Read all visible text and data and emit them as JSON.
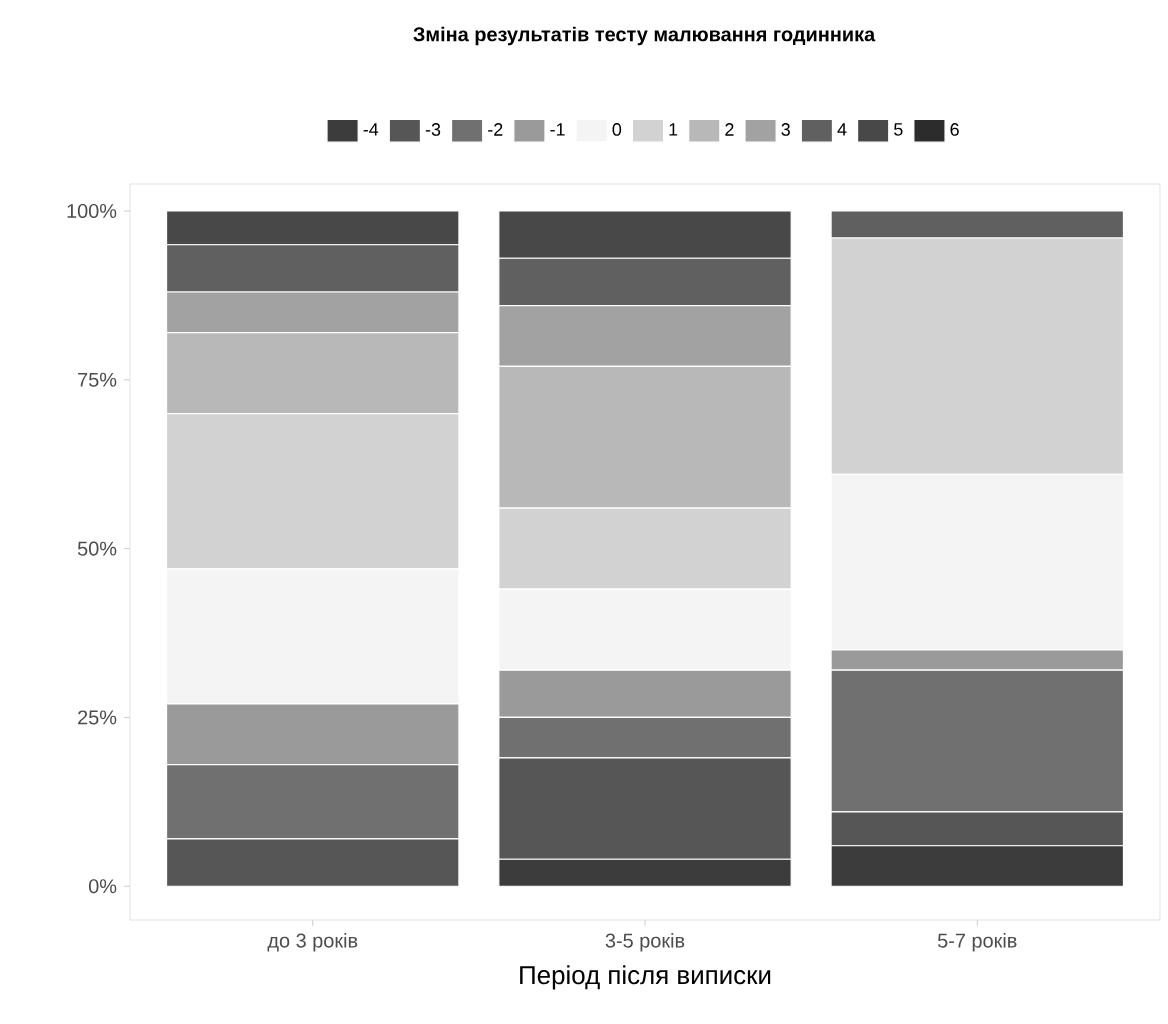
{
  "chart_data": {
    "type": "bar",
    "stacked": true,
    "xlabel": "Період після виписки",
    "legend_title": "Зміна результатів тесту малювання годинника",
    "legend": "top",
    "categories": [
      "до 3 років",
      "3-5 років",
      "5-7 років"
    ],
    "ylim": [
      -5,
      104
    ],
    "yticks": [
      {
        "value": 0,
        "label": "0%"
      },
      {
        "value": 25,
        "label": "25%"
      },
      {
        "value": 50,
        "label": "50%"
      },
      {
        "value": 75,
        "label": "75%"
      },
      {
        "value": 100,
        "label": "100%"
      }
    ],
    "series": [
      {
        "name": "-4",
        "color": "#3c3c3c",
        "values": [
          0,
          4,
          6
        ]
      },
      {
        "name": "-3",
        "color": "#565656",
        "values": [
          7,
          15,
          5
        ]
      },
      {
        "name": "-2",
        "color": "#707070",
        "values": [
          11,
          6,
          21
        ]
      },
      {
        "name": "-1",
        "color": "#9a9a9a",
        "values": [
          9,
          7,
          3
        ]
      },
      {
        "name": "0",
        "color": "#f4f4f4",
        "values": [
          20,
          12,
          26
        ]
      },
      {
        "name": "1",
        "color": "#d2d2d2",
        "values": [
          23,
          12,
          35
        ]
      },
      {
        "name": "2",
        "color": "#b8b8b8",
        "values": [
          12,
          21,
          0
        ]
      },
      {
        "name": "3",
        "color": "#a2a2a2",
        "values": [
          6,
          9,
          0
        ]
      },
      {
        "name": "4",
        "color": "#606060",
        "values": [
          7,
          7,
          4
        ]
      },
      {
        "name": "5",
        "color": "#484848",
        "values": [
          5,
          7,
          0
        ]
      },
      {
        "name": "6",
        "color": "#2c2c2c",
        "values": [
          0,
          0,
          0
        ]
      }
    ]
  }
}
